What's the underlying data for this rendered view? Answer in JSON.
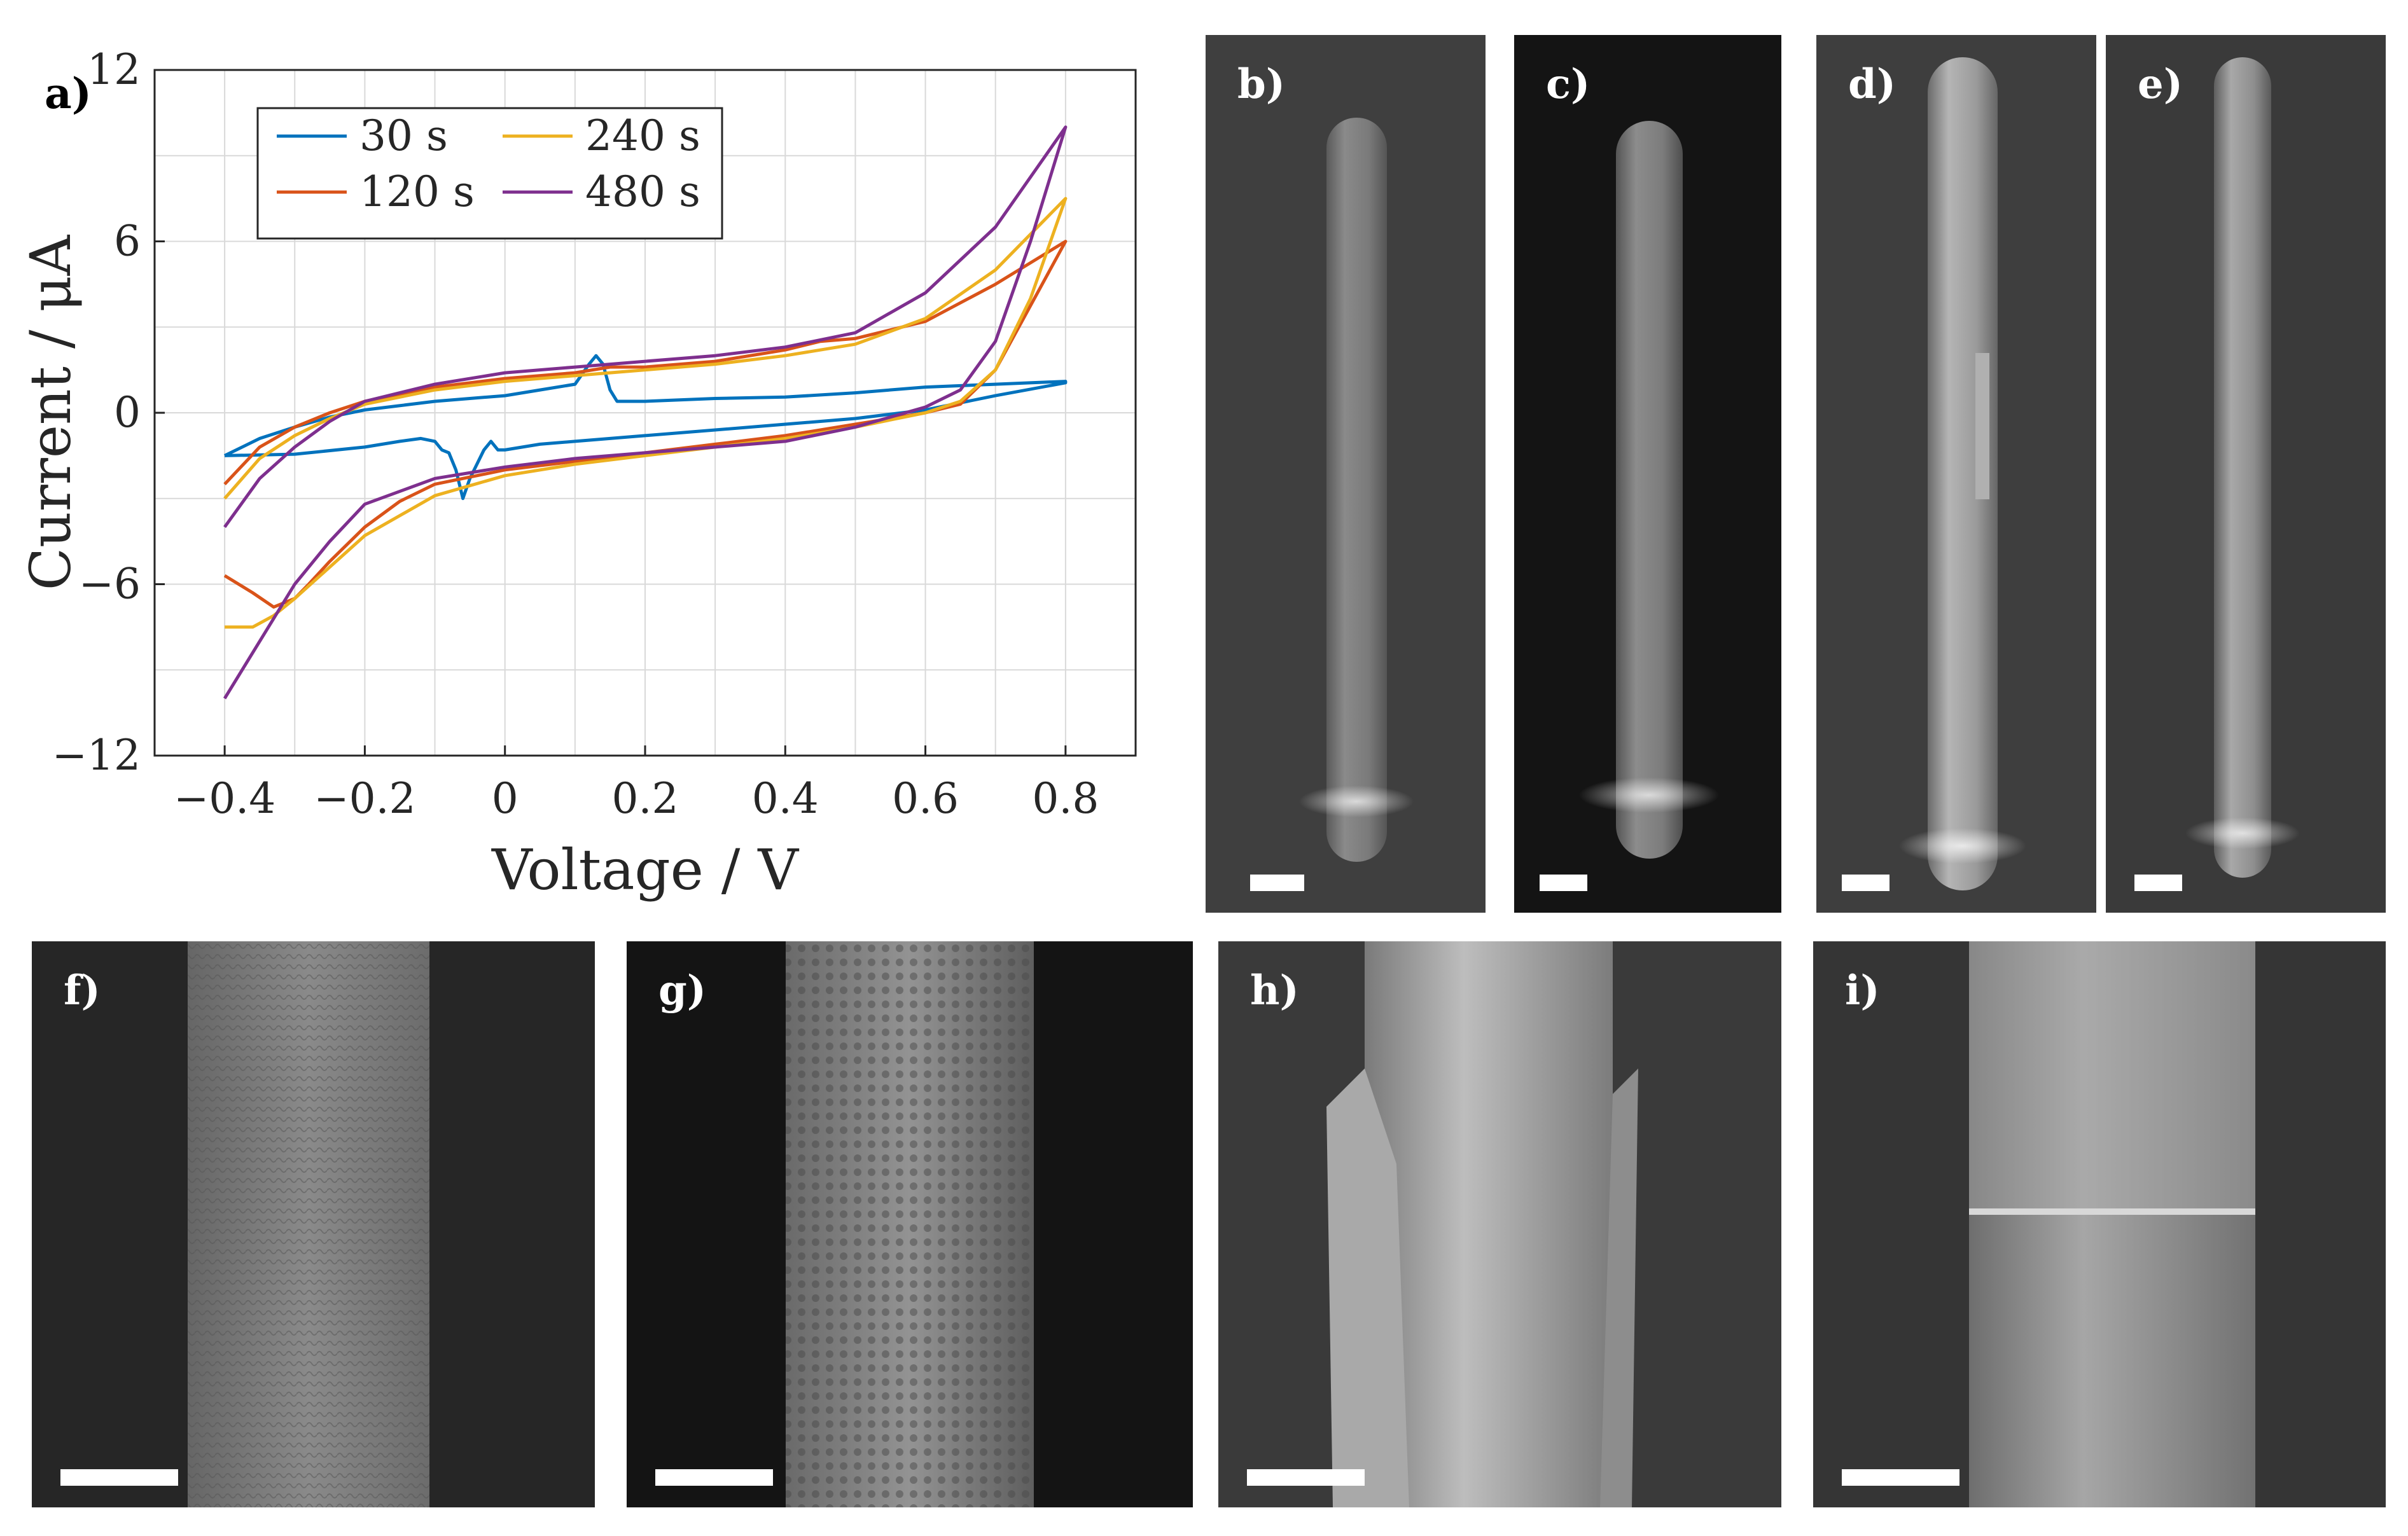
{
  "panels": {
    "a": "a)",
    "b": "b)",
    "c": "c)",
    "d": "d)",
    "e": "e)",
    "f": "f)",
    "g": "g)",
    "h": "h)",
    "i": "i)"
  },
  "chart_data": {
    "type": "line",
    "title": "",
    "xlabel": "Voltage / V",
    "ylabel": "Current / μA",
    "xlim": [
      -0.5,
      0.9
    ],
    "ylim": [
      -12,
      12
    ],
    "xticks": [
      -0.4,
      -0.2,
      0,
      0.2,
      0.4,
      0.6,
      0.8
    ],
    "xtick_labels": [
      "−0.4",
      "−0.2",
      "0",
      "0.2",
      "0.4",
      "0.6",
      "0.8"
    ],
    "yticks": [
      -12,
      -6,
      0,
      6,
      12
    ],
    "ytick_labels": [
      "−12",
      "−6",
      "0",
      "6",
      "12"
    ],
    "grid": true,
    "legend_position": "top-left",
    "series": [
      {
        "name": "30 s",
        "color": "#0072BD",
        "x": [
          -0.4,
          -0.35,
          -0.3,
          -0.25,
          -0.2,
          -0.1,
          -0.05,
          0,
          0.05,
          0.1,
          0.12,
          0.13,
          0.14,
          0.15,
          0.16,
          0.2,
          0.3,
          0.4,
          0.5,
          0.6,
          0.7,
          0.8,
          0.8,
          0.7,
          0.6,
          0.5,
          0.4,
          0.3,
          0.2,
          0.1,
          0.05,
          0,
          -0.01,
          -0.02,
          -0.03,
          -0.05,
          -0.06,
          -0.07,
          -0.08,
          -0.09,
          -0.1,
          -0.12,
          -0.15,
          -0.2,
          -0.3,
          -0.4
        ],
        "y": [
          -1.5,
          -0.9,
          -0.5,
          -0.15,
          0.1,
          0.4,
          0.5,
          0.6,
          0.8,
          1.0,
          1.7,
          2.0,
          1.7,
          0.8,
          0.4,
          0.4,
          0.5,
          0.55,
          0.7,
          0.9,
          1.0,
          1.1,
          1.05,
          0.6,
          0.1,
          -0.2,
          -0.4,
          -0.6,
          -0.8,
          -1.0,
          -1.1,
          -1.3,
          -1.3,
          -1.0,
          -1.3,
          -2.3,
          -3.0,
          -2.0,
          -1.4,
          -1.3,
          -1.0,
          -0.9,
          -1.0,
          -1.2,
          -1.45,
          -1.5
        ]
      },
      {
        "name": "120 s",
        "color": "#D95319",
        "x": [
          -0.4,
          -0.35,
          -0.3,
          -0.25,
          -0.2,
          -0.1,
          0,
          0.1,
          0.15,
          0.2,
          0.3,
          0.4,
          0.45,
          0.5,
          0.6,
          0.7,
          0.8,
          0.8,
          0.7,
          0.65,
          0.6,
          0.5,
          0.4,
          0.3,
          0.2,
          0.1,
          0,
          -0.1,
          -0.15,
          -0.2,
          -0.25,
          -0.28,
          -0.3,
          -0.33,
          -0.36,
          -0.4
        ],
        "y": [
          -2.5,
          -1.2,
          -0.5,
          0,
          0.4,
          0.9,
          1.2,
          1.4,
          1.6,
          1.6,
          1.8,
          2.2,
          2.5,
          2.6,
          3.2,
          4.5,
          6.0,
          6.0,
          1.5,
          0.3,
          0.0,
          -0.4,
          -0.8,
          -1.1,
          -1.4,
          -1.7,
          -2.0,
          -2.5,
          -3.1,
          -4.0,
          -5.2,
          -6.0,
          -6.5,
          -6.8,
          -6.3,
          -5.7
        ]
      },
      {
        "name": "240 s",
        "color": "#EDB120",
        "x": [
          -0.4,
          -0.35,
          -0.3,
          -0.25,
          -0.2,
          -0.1,
          0,
          0.1,
          0.2,
          0.3,
          0.4,
          0.5,
          0.6,
          0.7,
          0.8,
          0.8,
          0.75,
          0.7,
          0.65,
          0.6,
          0.5,
          0.4,
          0.3,
          0.2,
          0.1,
          0,
          -0.1,
          -0.2,
          -0.25,
          -0.3,
          -0.33,
          -0.36,
          -0.38,
          -0.4
        ],
        "y": [
          -3.0,
          -1.6,
          -0.8,
          -0.2,
          0.3,
          0.8,
          1.1,
          1.3,
          1.5,
          1.7,
          2.0,
          2.4,
          3.3,
          5.0,
          7.5,
          7.5,
          4.0,
          1.5,
          0.4,
          0.0,
          -0.5,
          -0.9,
          -1.2,
          -1.5,
          -1.8,
          -2.2,
          -2.9,
          -4.3,
          -5.4,
          -6.5,
          -7.1,
          -7.5,
          -7.5,
          -7.5
        ]
      },
      {
        "name": "480 s",
        "color": "#7E2F8E",
        "x": [
          -0.4,
          -0.35,
          -0.3,
          -0.25,
          -0.2,
          -0.1,
          0,
          0.1,
          0.2,
          0.3,
          0.4,
          0.5,
          0.6,
          0.7,
          0.8,
          0.8,
          0.75,
          0.7,
          0.65,
          0.6,
          0.5,
          0.4,
          0.3,
          0.2,
          0.1,
          0,
          -0.1,
          -0.2,
          -0.25,
          -0.3,
          -0.35,
          -0.4
        ],
        "y": [
          -4.0,
          -2.3,
          -1.2,
          -0.3,
          0.4,
          1.0,
          1.4,
          1.6,
          1.8,
          2.0,
          2.3,
          2.8,
          4.2,
          6.5,
          10.0,
          10.0,
          6.0,
          2.5,
          0.8,
          0.2,
          -0.5,
          -1.0,
          -1.2,
          -1.4,
          -1.6,
          -1.9,
          -2.3,
          -3.2,
          -4.5,
          -6.0,
          -8.0,
          -10.0
        ]
      }
    ]
  }
}
